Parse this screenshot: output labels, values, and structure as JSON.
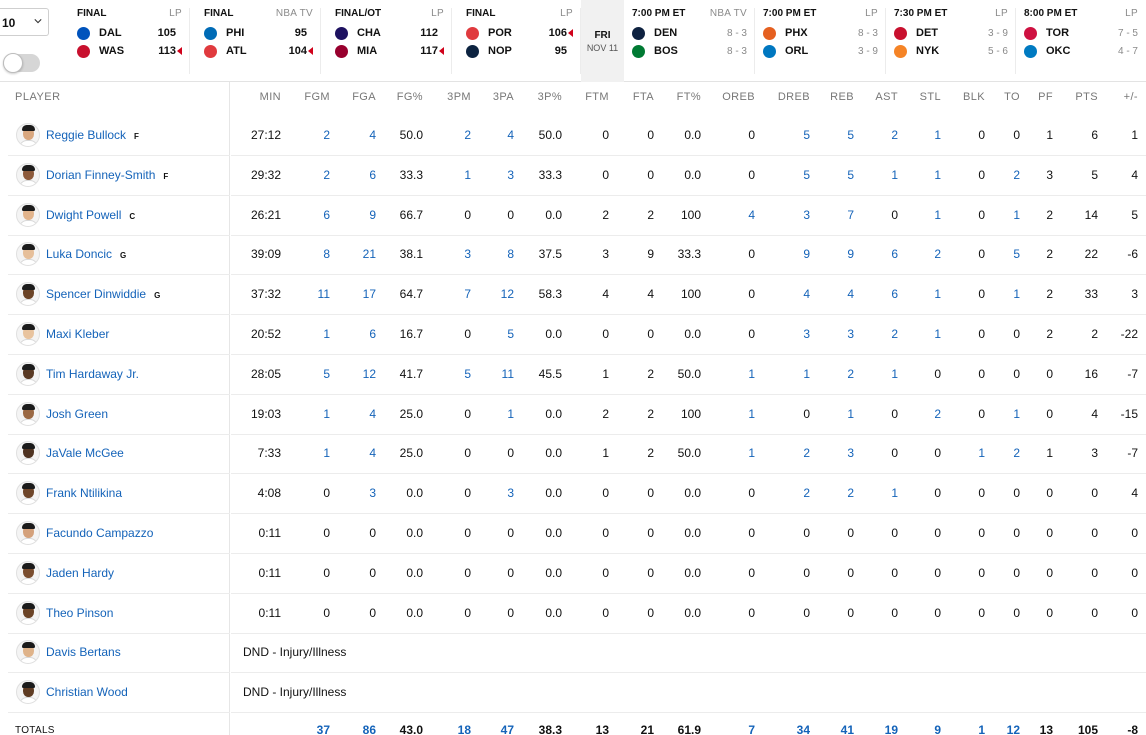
{
  "season_select": {
    "value": "10"
  },
  "colors": {
    "accent": "#1463b9",
    "loss_arrow": "#d0021b"
  },
  "games": [
    {
      "status": "FINAL",
      "network": "LP",
      "teams": [
        {
          "abbr": "DAL",
          "score": "105",
          "win": false,
          "color": "#0053bc"
        },
        {
          "abbr": "WAS",
          "score": "113",
          "win": true,
          "color": "#c8102e"
        }
      ]
    },
    {
      "status": "FINAL",
      "network": "NBA TV",
      "teams": [
        {
          "abbr": "PHI",
          "score": "95",
          "win": false,
          "color": "#006bb6"
        },
        {
          "abbr": "ATL",
          "score": "104",
          "win": true,
          "color": "#e03a3e"
        }
      ]
    },
    {
      "status": "FINAL/OT",
      "network": "LP",
      "teams": [
        {
          "abbr": "CHA",
          "score": "112",
          "win": false,
          "color": "#1d1160"
        },
        {
          "abbr": "MIA",
          "score": "117",
          "win": true,
          "color": "#98002e"
        }
      ]
    },
    {
      "status": "FINAL",
      "network": "LP",
      "teams": [
        {
          "abbr": "POR",
          "score": "106",
          "win": true,
          "color": "#e03a3e"
        },
        {
          "abbr": "NOP",
          "score": "95",
          "win": false,
          "color": "#0c2340"
        }
      ]
    }
  ],
  "date_chip": {
    "weekday": "FRI",
    "date": "NOV 11"
  },
  "upcoming": [
    {
      "time": "7:00 PM ET",
      "network": "NBA TV",
      "teams": [
        {
          "abbr": "DEN",
          "record": "8 - 3",
          "color": "#0e2240"
        },
        {
          "abbr": "BOS",
          "record": "8 - 3",
          "color": "#007a33"
        }
      ]
    },
    {
      "time": "7:00 PM ET",
      "network": "LP",
      "teams": [
        {
          "abbr": "PHX",
          "record": "8 - 3",
          "color": "#e56020"
        },
        {
          "abbr": "ORL",
          "record": "3 - 9",
          "color": "#0077c0"
        }
      ]
    },
    {
      "time": "7:30 PM ET",
      "network": "LP",
      "teams": [
        {
          "abbr": "DET",
          "record": "3 - 9",
          "color": "#c8102e"
        },
        {
          "abbr": "NYK",
          "record": "5 - 6",
          "color": "#f58426"
        }
      ]
    },
    {
      "time": "8:00 PM ET",
      "network": "LP",
      "teams": [
        {
          "abbr": "TOR",
          "record": "7 - 5",
          "color": "#ce1141"
        },
        {
          "abbr": "OKC",
          "record": "4 - 7",
          "color": "#007ac1"
        }
      ]
    }
  ],
  "table": {
    "player_header": "PLAYER",
    "columns": [
      "MIN",
      "FGM",
      "FGA",
      "FG%",
      "3PM",
      "3PA",
      "3P%",
      "FTM",
      "FTA",
      "FT%",
      "OREB",
      "DREB",
      "REB",
      "AST",
      "STL",
      "BLK",
      "TO",
      "PF",
      "PTS",
      "+/-"
    ],
    "players": [
      {
        "name": "Reggie Bullock",
        "pos": "F",
        "stats": [
          "27:12",
          "2",
          "4",
          "50.0",
          "2",
          "4",
          "50.0",
          "0",
          "0",
          "0.0",
          "0",
          "5",
          "5",
          "2",
          "1",
          "0",
          "0",
          "1",
          "6",
          "1"
        ]
      },
      {
        "name": "Dorian Finney-Smith",
        "pos": "F",
        "stats": [
          "29:32",
          "2",
          "6",
          "33.3",
          "1",
          "3",
          "33.3",
          "0",
          "0",
          "0.0",
          "0",
          "5",
          "5",
          "1",
          "1",
          "0",
          "2",
          "3",
          "5",
          "4"
        ]
      },
      {
        "name": "Dwight Powell",
        "pos": "C",
        "stats": [
          "26:21",
          "6",
          "9",
          "66.7",
          "0",
          "0",
          "0.0",
          "2",
          "2",
          "100",
          "4",
          "3",
          "7",
          "0",
          "1",
          "0",
          "1",
          "2",
          "14",
          "5"
        ]
      },
      {
        "name": "Luka Doncic",
        "pos": "G",
        "stats": [
          "39:09",
          "8",
          "21",
          "38.1",
          "3",
          "8",
          "37.5",
          "3",
          "9",
          "33.3",
          "0",
          "9",
          "9",
          "6",
          "2",
          "0",
          "5",
          "2",
          "22",
          "-6"
        ]
      },
      {
        "name": "Spencer Dinwiddie",
        "pos": "G",
        "stats": [
          "37:32",
          "11",
          "17",
          "64.7",
          "7",
          "12",
          "58.3",
          "4",
          "4",
          "100",
          "0",
          "4",
          "4",
          "6",
          "1",
          "0",
          "1",
          "2",
          "33",
          "3"
        ]
      },
      {
        "name": "Maxi Kleber",
        "pos": "",
        "stats": [
          "20:52",
          "1",
          "6",
          "16.7",
          "0",
          "5",
          "0.0",
          "0",
          "0",
          "0.0",
          "0",
          "3",
          "3",
          "2",
          "1",
          "0",
          "0",
          "2",
          "2",
          "-22"
        ]
      },
      {
        "name": "Tim Hardaway Jr.",
        "pos": "",
        "stats": [
          "28:05",
          "5",
          "12",
          "41.7",
          "5",
          "11",
          "45.5",
          "1",
          "2",
          "50.0",
          "1",
          "1",
          "2",
          "1",
          "0",
          "0",
          "0",
          "0",
          "16",
          "-7"
        ]
      },
      {
        "name": "Josh Green",
        "pos": "",
        "stats": [
          "19:03",
          "1",
          "4",
          "25.0",
          "0",
          "1",
          "0.0",
          "2",
          "2",
          "100",
          "1",
          "0",
          "1",
          "0",
          "2",
          "0",
          "1",
          "0",
          "4",
          "-15"
        ]
      },
      {
        "name": "JaVale McGee",
        "pos": "",
        "stats": [
          "7:33",
          "1",
          "4",
          "25.0",
          "0",
          "0",
          "0.0",
          "1",
          "2",
          "50.0",
          "1",
          "2",
          "3",
          "0",
          "0",
          "1",
          "2",
          "1",
          "3",
          "-7"
        ]
      },
      {
        "name": "Frank Ntilikina",
        "pos": "",
        "stats": [
          "4:08",
          "0",
          "3",
          "0.0",
          "0",
          "3",
          "0.0",
          "0",
          "0",
          "0.0",
          "0",
          "2",
          "2",
          "1",
          "0",
          "0",
          "0",
          "0",
          "0",
          "4"
        ]
      },
      {
        "name": "Facundo Campazzo",
        "pos": "",
        "stats": [
          "0:11",
          "0",
          "0",
          "0.0",
          "0",
          "0",
          "0.0",
          "0",
          "0",
          "0.0",
          "0",
          "0",
          "0",
          "0",
          "0",
          "0",
          "0",
          "0",
          "0",
          "0"
        ]
      },
      {
        "name": "Jaden Hardy",
        "pos": "",
        "stats": [
          "0:11",
          "0",
          "0",
          "0.0",
          "0",
          "0",
          "0.0",
          "0",
          "0",
          "0.0",
          "0",
          "0",
          "0",
          "0",
          "0",
          "0",
          "0",
          "0",
          "0",
          "0"
        ]
      },
      {
        "name": "Theo Pinson",
        "pos": "",
        "stats": [
          "0:11",
          "0",
          "0",
          "0.0",
          "0",
          "0",
          "0.0",
          "0",
          "0",
          "0.0",
          "0",
          "0",
          "0",
          "0",
          "0",
          "0",
          "0",
          "0",
          "0",
          "0"
        ]
      },
      {
        "name": "Davis Bertans",
        "pos": "",
        "dnd": "DND - Injury/Illness"
      },
      {
        "name": "Christian Wood",
        "pos": "",
        "dnd": "DND - Injury/Illness"
      }
    ],
    "totals_label": "TOTALS",
    "totals": [
      "",
      "37",
      "86",
      "43.0",
      "18",
      "47",
      "38.3",
      "13",
      "21",
      "61.9",
      "7",
      "34",
      "41",
      "19",
      "9",
      "1",
      "12",
      "13",
      "105",
      "-8"
    ]
  }
}
